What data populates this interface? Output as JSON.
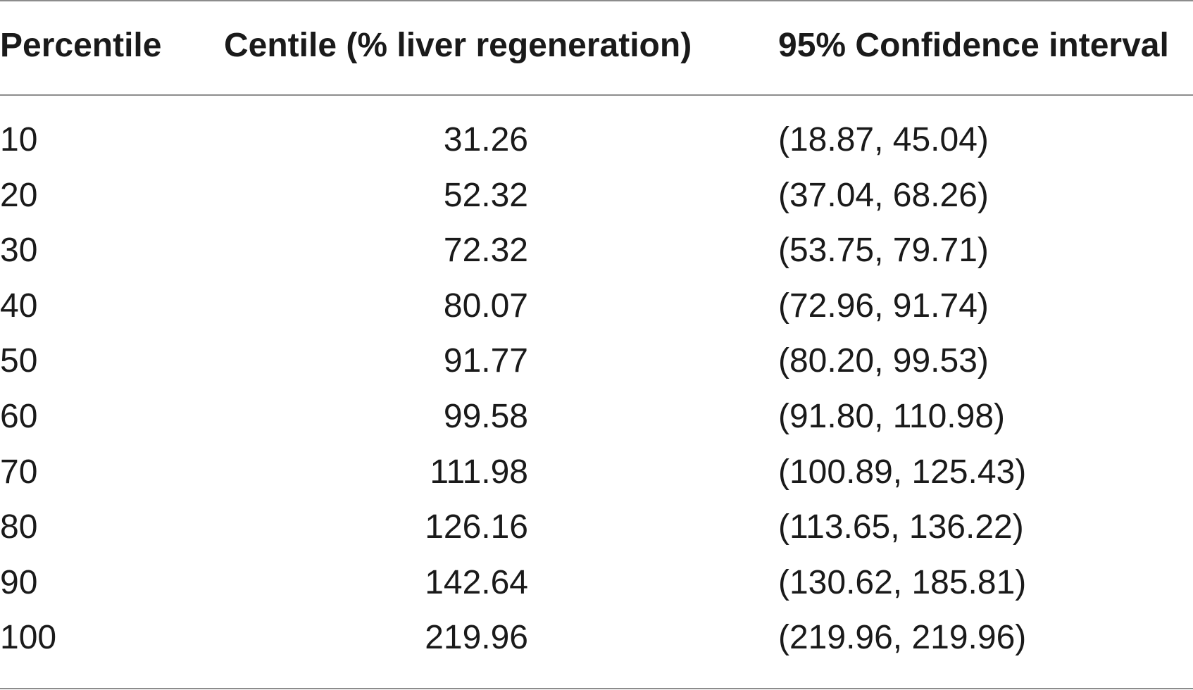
{
  "table": {
    "headers": {
      "percentile": "Percentile",
      "centile": "Centile (% liver regeneration)",
      "ci": "95% Confidence interval"
    },
    "rows": [
      {
        "percentile": "10",
        "centile": "31.26",
        "ci": "(18.87, 45.04)"
      },
      {
        "percentile": "20",
        "centile": "52.32",
        "ci": "(37.04, 68.26)"
      },
      {
        "percentile": "30",
        "centile": "72.32",
        "ci": "(53.75, 79.71)"
      },
      {
        "percentile": "40",
        "centile": "80.07",
        "ci": "(72.96, 91.74)"
      },
      {
        "percentile": "50",
        "centile": "91.77",
        "ci": "(80.20, 99.53)"
      },
      {
        "percentile": "60",
        "centile": "99.58",
        "ci": "(91.80, 110.98)"
      },
      {
        "percentile": "70",
        "centile": "111.98",
        "ci": "(100.89, 125.43)"
      },
      {
        "percentile": "80",
        "centile": "126.16",
        "ci": "(113.65, 136.22)"
      },
      {
        "percentile": "90",
        "centile": "142.64",
        "ci": "(130.62, 185.81)"
      },
      {
        "percentile": "100",
        "centile": "219.96",
        "ci": "(219.96, 219.96)"
      }
    ]
  }
}
